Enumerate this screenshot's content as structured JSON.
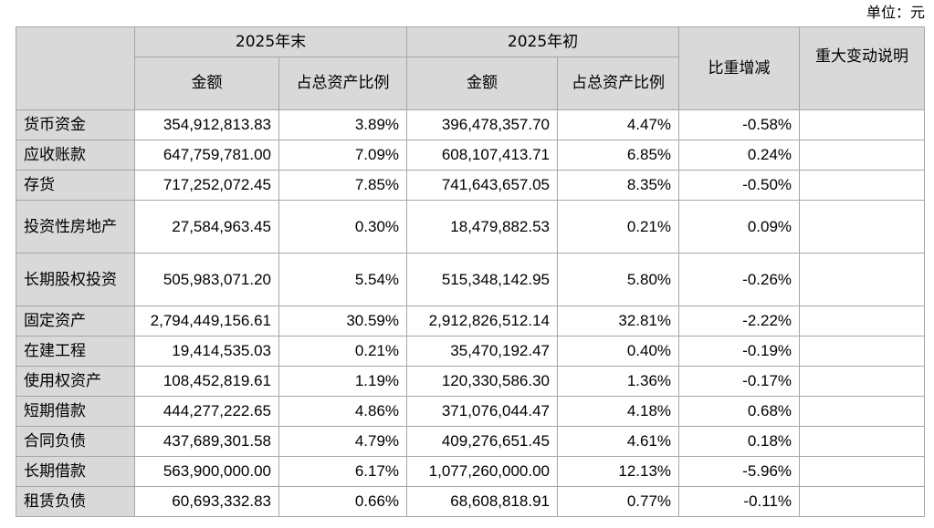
{
  "unit_label": "单位：元",
  "header": {
    "end_group": "2025年末",
    "begin_group": "2025年初",
    "amount": "金额",
    "ratio": "占总资产比例",
    "change": "比重增减",
    "note": "重大变动说明"
  },
  "rows": [
    {
      "item": "货币资金",
      "end_amount": "354,912,813.83",
      "end_ratio": "3.89%",
      "begin_amount": "396,478,357.70",
      "begin_ratio": "4.47%",
      "change": "-0.58%",
      "note": ""
    },
    {
      "item": "应收账款",
      "end_amount": "647,759,781.00",
      "end_ratio": "7.09%",
      "begin_amount": "608,107,413.71",
      "begin_ratio": "6.85%",
      "change": "0.24%",
      "note": ""
    },
    {
      "item": "存货",
      "end_amount": "717,252,072.45",
      "end_ratio": "7.85%",
      "begin_amount": "741,643,657.05",
      "begin_ratio": "8.35%",
      "change": "-0.50%",
      "note": ""
    },
    {
      "item": "投资性房地产",
      "end_amount": "27,584,963.45",
      "end_ratio": "0.30%",
      "begin_amount": "18,479,882.53",
      "begin_ratio": "0.21%",
      "change": "0.09%",
      "note": ""
    },
    {
      "item": "长期股权投资",
      "end_amount": "505,983,071.20",
      "end_ratio": "5.54%",
      "begin_amount": "515,348,142.95",
      "begin_ratio": "5.80%",
      "change": "-0.26%",
      "note": ""
    },
    {
      "item": "固定资产",
      "end_amount": "2,794,449,156.61",
      "end_ratio": "30.59%",
      "begin_amount": "2,912,826,512.14",
      "begin_ratio": "32.81%",
      "change": "-2.22%",
      "note": ""
    },
    {
      "item": "在建工程",
      "end_amount": "19,414,535.03",
      "end_ratio": "0.21%",
      "begin_amount": "35,470,192.47",
      "begin_ratio": "0.40%",
      "change": "-0.19%",
      "note": ""
    },
    {
      "item": "使用权资产",
      "end_amount": "108,452,819.61",
      "end_ratio": "1.19%",
      "begin_amount": "120,330,586.30",
      "begin_ratio": "1.36%",
      "change": "-0.17%",
      "note": ""
    },
    {
      "item": "短期借款",
      "end_amount": "444,277,222.65",
      "end_ratio": "4.86%",
      "begin_amount": "371,076,044.47",
      "begin_ratio": "4.18%",
      "change": "0.68%",
      "note": ""
    },
    {
      "item": "合同负债",
      "end_amount": "437,689,301.58",
      "end_ratio": "4.79%",
      "begin_amount": "409,276,651.45",
      "begin_ratio": "4.61%",
      "change": "0.18%",
      "note": ""
    },
    {
      "item": "长期借款",
      "end_amount": "563,900,000.00",
      "end_ratio": "6.17%",
      "begin_amount": "1,077,260,000.00",
      "begin_ratio": "12.13%",
      "change": "-5.96%",
      "note": ""
    },
    {
      "item": "租赁负债",
      "end_amount": "60,693,332.83",
      "end_ratio": "0.66%",
      "begin_amount": "68,608,818.91",
      "begin_ratio": "0.77%",
      "change": "-0.11%",
      "note": ""
    }
  ]
}
